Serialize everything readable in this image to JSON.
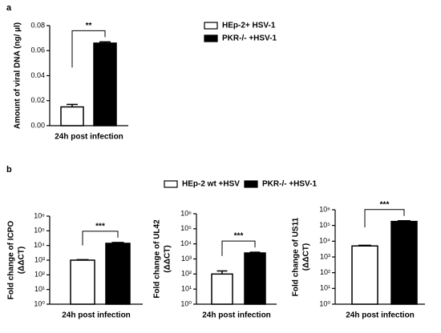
{
  "chart_data": [
    {
      "type": "bar",
      "panel_label": "a",
      "y_label": [
        "Amount of viral DNA (ng/ µl)"
      ],
      "categories": [
        "24h post infection"
      ],
      "series": [
        {
          "name": "HEp-2+ HSV-1",
          "color": "#ffffff",
          "values": [
            0.015
          ],
          "errors": [
            0.002
          ]
        },
        {
          "name": "PKR-/- +HSV-1",
          "color": "#000000",
          "values": [
            0.066
          ],
          "errors": [
            0.001
          ]
        }
      ],
      "ylim": [
        0,
        0.08
      ],
      "yticks": [
        {
          "value": 0,
          "label": "0.00"
        },
        0.02,
        0.04,
        0.06,
        0.08
      ],
      "annotations": [
        {
          "text": "**"
        }
      ],
      "legend": "right"
    },
    {
      "type": "bar",
      "panel_label": "b",
      "y_label": [
        "Fold change of ICPO",
        "(ΔΔCT)"
      ],
      "categories": [
        "24h post infection"
      ],
      "series": [
        {
          "name": "HEp-2 wt +HSV",
          "color": "#ffffff",
          "values": [
            1000
          ],
          "errors": [
            80
          ]
        },
        {
          "name": "PKR-/- +HSV-1",
          "color": "#000000",
          "values": [
            14000
          ],
          "errors": [
            2000
          ]
        }
      ],
      "log_scale": true,
      "ylim": [
        1,
        1000000
      ],
      "yticks": [
        {
          "value": 1,
          "label": "10⁰"
        },
        {
          "value": 10,
          "label": "10¹"
        },
        {
          "value": 100,
          "label": "10²"
        },
        {
          "value": 1000,
          "label": "10³"
        },
        {
          "value": 10000,
          "label": "10⁴"
        },
        {
          "value": 100000,
          "label": "10⁵"
        },
        {
          "value": 1000000,
          "label": "10⁶"
        }
      ],
      "annotations": [
        {
          "text": "***"
        }
      ],
      "legend": "top"
    },
    {
      "type": "bar",
      "y_label": [
        "Fold change of UL42",
        "(ΔΔCT)"
      ],
      "categories": [
        "24h post infection"
      ],
      "series": [
        {
          "color": "#ffffff",
          "values": [
            100
          ],
          "errors": [
            60
          ]
        },
        {
          "color": "#000000",
          "values": [
            2500
          ],
          "errors": [
            300
          ]
        }
      ],
      "log_scale": true,
      "ylim": [
        1,
        1000000
      ],
      "yticks": [
        {
          "value": 1,
          "label": "10⁰"
        },
        {
          "value": 10,
          "label": "10¹"
        },
        {
          "value": 100,
          "label": "10²"
        },
        {
          "value": 1000,
          "label": "10³"
        },
        {
          "value": 10000,
          "label": "10⁴"
        },
        {
          "value": 100000,
          "label": "10⁵"
        },
        {
          "value": 1000000,
          "label": "10⁶"
        }
      ],
      "annotations": [
        {
          "text": "***"
        }
      ]
    },
    {
      "type": "bar",
      "y_label": [
        "Fold change of US11",
        "(ΔΔCT)"
      ],
      "categories": [
        "24h post infection"
      ],
      "series": [
        {
          "color": "#ffffff",
          "values": [
            5000
          ],
          "errors": [
            500
          ]
        },
        {
          "color": "#000000",
          "values": [
            180000
          ],
          "errors": [
            20000
          ]
        }
      ],
      "log_scale": true,
      "ylim": [
        1,
        1000000
      ],
      "yticks": [
        {
          "value": 1,
          "label": "10⁰"
        },
        {
          "value": 10,
          "label": "10¹"
        },
        {
          "value": 100,
          "label": "10²"
        },
        {
          "value": 1000,
          "label": "10³"
        },
        {
          "value": 10000,
          "label": "10⁴"
        },
        {
          "value": 100000,
          "label": "10⁵"
        },
        {
          "value": 1000000,
          "label": "10⁶"
        }
      ],
      "annotations": [
        {
          "text": "***"
        }
      ]
    }
  ]
}
